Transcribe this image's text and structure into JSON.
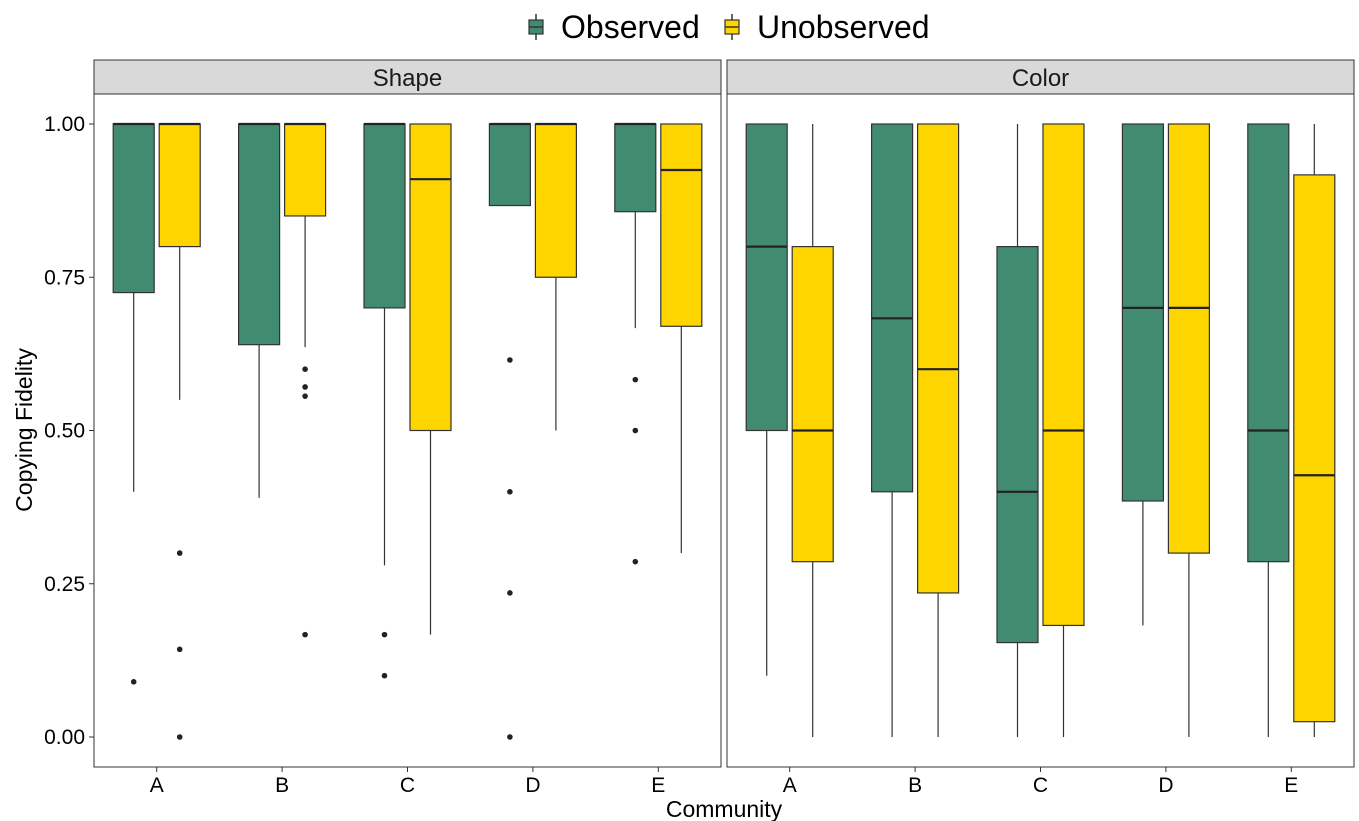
{
  "legend": {
    "items": [
      {
        "label": "Observed",
        "color": "#418B71"
      },
      {
        "label": "Unobserved",
        "color": "#FFD500"
      }
    ]
  },
  "chart_data": {
    "type": "boxplot",
    "facets": [
      "Shape",
      "Color"
    ],
    "categories": [
      "A",
      "B",
      "C",
      "D",
      "E"
    ],
    "xlabel": "Community",
    "ylabel": "Copying Fidelity",
    "ylim": [
      -0.05,
      1.05
    ],
    "yticks": [
      "0.00",
      "0.25",
      "0.50",
      "0.75",
      "1.00"
    ],
    "ytick_values": [
      0,
      0.25,
      0.5,
      0.75,
      1.0
    ],
    "legend_position": "top",
    "series": [
      {
        "name": "Observed",
        "color": "#418B71",
        "facets": {
          "Shape": [
            {
              "category": "A",
              "min": 0.4,
              "q1": 0.725,
              "median": 1.0,
              "q3": 1.0,
              "max": 1.0,
              "outliers": [
                0.09
              ]
            },
            {
              "category": "B",
              "min": 0.39,
              "q1": 0.64,
              "median": 1.0,
              "q3": 1.0,
              "max": 1.0,
              "outliers": []
            },
            {
              "category": "C",
              "min": 0.28,
              "q1": 0.7,
              "median": 1.0,
              "q3": 1.0,
              "max": 1.0,
              "outliers": [
                0.167,
                0.1
              ]
            },
            {
              "category": "D",
              "min": 0.867,
              "q1": 0.867,
              "median": 1.0,
              "q3": 1.0,
              "max": 1.0,
              "outliers": [
                0.615,
                0.4,
                0.235,
                0.0
              ]
            },
            {
              "category": "E",
              "min": 0.667,
              "q1": 0.857,
              "median": 1.0,
              "q3": 1.0,
              "max": 1.0,
              "outliers": [
                0.583,
                0.5,
                0.286
              ]
            }
          ],
          "Color": [
            {
              "category": "A",
              "min": 0.1,
              "q1": 0.5,
              "median": 0.8,
              "q3": 1.0,
              "max": 1.0,
              "outliers": []
            },
            {
              "category": "B",
              "min": 0.0,
              "q1": 0.4,
              "median": 0.683,
              "q3": 1.0,
              "max": 1.0,
              "outliers": []
            },
            {
              "category": "C",
              "min": 0.0,
              "q1": 0.154,
              "median": 0.4,
              "q3": 0.8,
              "max": 1.0,
              "outliers": []
            },
            {
              "category": "D",
              "min": 0.182,
              "q1": 0.385,
              "median": 0.7,
              "q3": 1.0,
              "max": 1.0,
              "outliers": []
            },
            {
              "category": "E",
              "min": 0.0,
              "q1": 0.286,
              "median": 0.5,
              "q3": 1.0,
              "max": 1.0,
              "outliers": []
            }
          ]
        }
      },
      {
        "name": "Unobserved",
        "color": "#FFD500",
        "facets": {
          "Shape": [
            {
              "category": "A",
              "min": 0.55,
              "q1": 0.8,
              "median": 1.0,
              "q3": 1.0,
              "max": 1.0,
              "outliers": [
                0.3,
                0.143,
                0.0
              ]
            },
            {
              "category": "B",
              "min": 0.636,
              "q1": 0.85,
              "median": 1.0,
              "q3": 1.0,
              "max": 1.0,
              "outliers": [
                0.6,
                0.571,
                0.556,
                0.167
              ]
            },
            {
              "category": "C",
              "min": 0.167,
              "q1": 0.5,
              "median": 0.91,
              "q3": 1.0,
              "max": 1.0,
              "outliers": []
            },
            {
              "category": "D",
              "min": 0.5,
              "q1": 0.75,
              "median": 1.0,
              "q3": 1.0,
              "max": 1.0,
              "outliers": []
            },
            {
              "category": "E",
              "min": 0.3,
              "q1": 0.67,
              "median": 0.925,
              "q3": 1.0,
              "max": 1.0,
              "outliers": []
            }
          ],
          "Color": [
            {
              "category": "A",
              "min": 0.0,
              "q1": 0.286,
              "median": 0.5,
              "q3": 0.8,
              "max": 1.0,
              "outliers": []
            },
            {
              "category": "B",
              "min": 0.0,
              "q1": 0.235,
              "median": 0.6,
              "q3": 1.0,
              "max": 1.0,
              "outliers": []
            },
            {
              "category": "C",
              "min": 0.0,
              "q1": 0.182,
              "median": 0.5,
              "q3": 1.0,
              "max": 1.0,
              "outliers": []
            },
            {
              "category": "D",
              "min": 0.0,
              "q1": 0.3,
              "median": 0.7,
              "q3": 1.0,
              "max": 1.0,
              "outliers": []
            },
            {
              "category": "E",
              "min": 0.0,
              "q1": 0.025,
              "median": 0.427,
              "q3": 0.917,
              "max": 1.0,
              "outliers": []
            }
          ]
        }
      }
    ]
  }
}
